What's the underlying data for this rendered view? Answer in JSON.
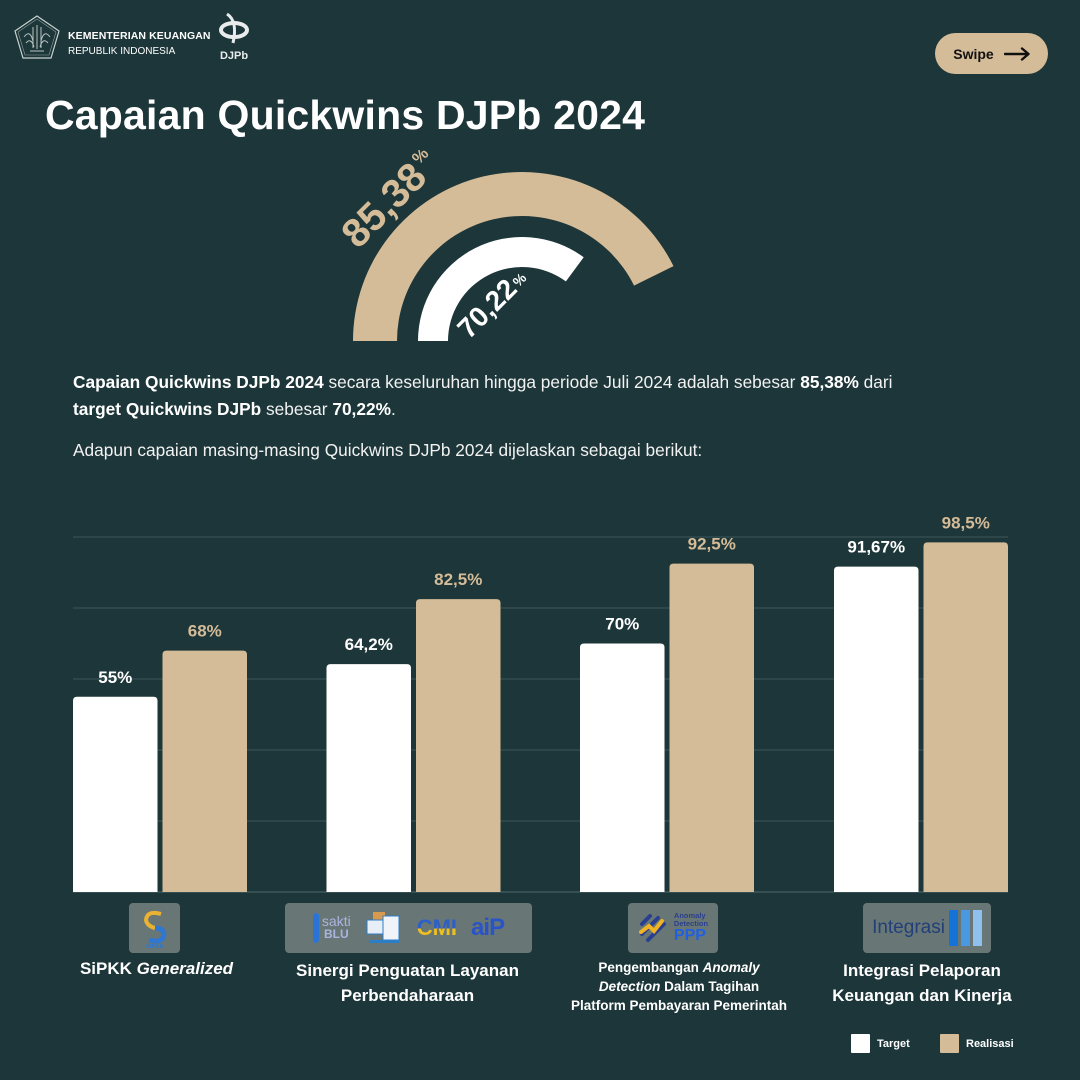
{
  "header": {
    "ministry_name": "KEMENTERIAN KEUANGAN",
    "ministry_sub": "REPUBLIK INDONESIA",
    "djpb_logo_text": "DJPb",
    "swipe_label": "Swipe",
    "swipe_icon": "arrow-right-icon"
  },
  "title": "Capaian Quickwins DJPb 2024",
  "gauge": {
    "realisasi_value": 85.38,
    "realisasi_label": "85,38",
    "target_value": 70.22,
    "target_label": "70,22",
    "percent_sign": "%"
  },
  "summary": {
    "part1_bold": "Capaian Quickwins DJPb 2024",
    "part2": " secara keseluruhan hingga periode Juli 2024 adalah sebesar ",
    "part3_bold": "85,38%",
    "part4": " dari ",
    "part5_bold": "target Quickwins DJPb",
    "part6": " sebesar ",
    "part7_bold": "70,22%",
    "part8": "."
  },
  "intro": "Adapun capaian masing-masing Quickwins DJPb 2024 dijelaskan sebagai berikut:",
  "categories": [
    {
      "label_plain": "SiPKK ",
      "label_italic": "Generalized",
      "logo_text": "SIPKK"
    },
    {
      "label_plain": "Sinergi Penguatan Layanan Perbendaharaan",
      "logo_texts": [
        "sakti",
        "BLU",
        "CMI",
        "aiP"
      ]
    },
    {
      "label_plain1": "Pengembangan ",
      "label_italic1": "Anomaly",
      "label_italic2": "Detection",
      "label_plain2": " Dalam Tagihan",
      "label_plain3": "Platform Pembayaran Pemerintah",
      "logo_texts": [
        "Anomaly",
        "Detection",
        "PPP"
      ]
    },
    {
      "label_line1": "Integrasi Pelaporan",
      "label_line2": "Keuangan dan Kinerja",
      "logo_text": "Integrasi"
    }
  ],
  "legend": {
    "target": "Target",
    "realisasi": "Realisasi"
  },
  "colors": {
    "background": "#1d3639",
    "target": "#ffffff",
    "realisasi": "#d5bc98",
    "grid": "#355053"
  },
  "chart_data": {
    "type": "bar",
    "title": "Capaian Quickwins DJPb 2024",
    "categories": [
      "SiPKK Generalized",
      "Sinergi Penguatan Layanan Perbendaharaan",
      "Pengembangan Anomaly Detection Dalam Tagihan Platform Pembayaran Pemerintah",
      "Integrasi Pelaporan Keuangan dan Kinerja"
    ],
    "series": [
      {
        "name": "Target",
        "values": [
          55,
          64.2,
          70,
          91.67
        ],
        "labels": [
          "55%",
          "64,2%",
          "70%",
          "91,67%"
        ]
      },
      {
        "name": "Realisasi",
        "values": [
          68,
          82.5,
          92.5,
          98.5
        ],
        "labels": [
          "68%",
          "82,5%",
          "92,5%",
          "98,5%"
        ]
      }
    ],
    "ylim": [
      0,
      100
    ],
    "grid": true,
    "legend": "bottom-right",
    "xlabel": "",
    "ylabel": ""
  }
}
